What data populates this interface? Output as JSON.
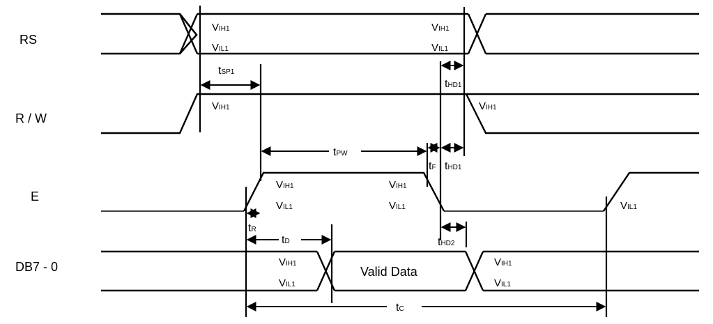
{
  "signals": {
    "rs": "RS",
    "rw": "R / W",
    "e": "E",
    "db": "DB7 - 0"
  },
  "levels": {
    "v": "V",
    "ih1": "IH1",
    "il1": "IL1"
  },
  "timings": {
    "t": "t",
    "sp1": "SP1",
    "hd1": "HD1",
    "pw": "PW",
    "f": "F",
    "r": "R",
    "d": "D",
    "hd2": "HD2",
    "c": "C"
  },
  "data_label": "Valid Data"
}
